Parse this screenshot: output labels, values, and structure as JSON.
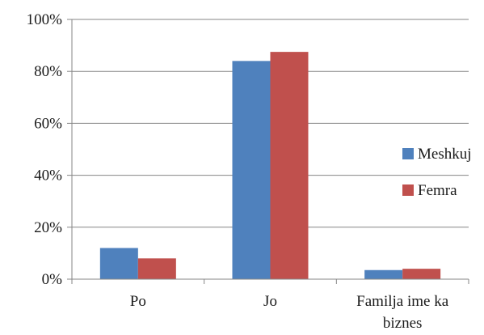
{
  "chart_data": {
    "type": "bar",
    "categories": [
      "Po",
      "Jo",
      "Familja ime ka biznes"
    ],
    "series": [
      {
        "name": "Meshkuj",
        "values": [
          12,
          84,
          3.5
        ],
        "color": "#4f81bd"
      },
      {
        "name": "Femra",
        "values": [
          8,
          87.5,
          4
        ],
        "color": "#c0504d"
      }
    ],
    "y_ticks": [
      "0%",
      "20%",
      "40%",
      "60%",
      "80%",
      "100%"
    ],
    "ylim": [
      0,
      100
    ],
    "grid": true,
    "legend_position": "right"
  }
}
